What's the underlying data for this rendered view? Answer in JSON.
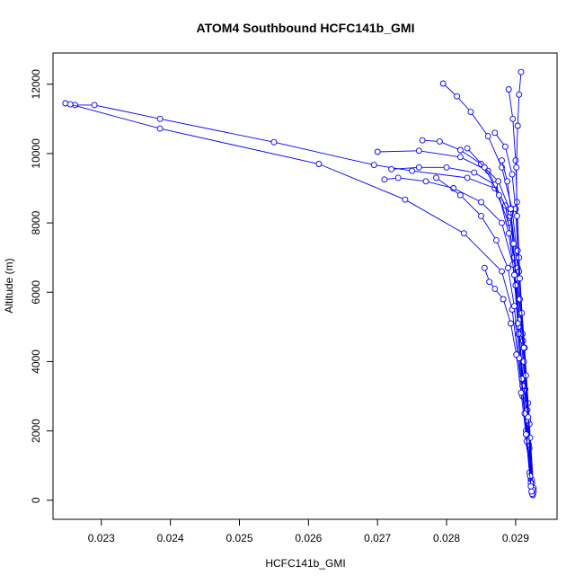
{
  "chart_data": {
    "type": "line",
    "title": "ATOM4 Southbound HCFC141b_GMI",
    "xlabel": "HCFC141b_GMI",
    "ylabel": "Altitude (m)",
    "xlim": [
      0.0223,
      0.0296
    ],
    "ylim": [
      -550,
      12900
    ],
    "x_ticks": [
      0.023,
      0.024,
      0.025,
      0.026,
      0.027,
      0.028,
      0.029
    ],
    "x_tick_labels": [
      "0.023",
      "0.024",
      "0.025",
      "0.026",
      "0.027",
      "0.028",
      "0.029"
    ],
    "y_ticks": [
      0,
      2000,
      4000,
      6000,
      8000,
      10000,
      12000
    ],
    "y_tick_labels": [
      "0",
      "2000",
      "4000",
      "6000",
      "8000",
      "10000",
      "12000"
    ],
    "marker": "open-circle",
    "color": "#0000ff",
    "grid": false,
    "legend": "none",
    "series": [
      {
        "x": [
          0.02248,
          0.02262,
          0.0229,
          0.02385,
          0.0255,
          0.02695,
          0.0275,
          0.0283,
          0.0287,
          0.0289,
          0.029,
          0.02905,
          0.0291,
          0.02915,
          0.0292,
          0.02925
        ],
        "y": [
          11450,
          11400,
          11400,
          11000,
          10330,
          9670,
          9500,
          9300,
          9000,
          8000,
          6500,
          5000,
          3500,
          2000,
          800,
          200
        ]
      },
      {
        "x": [
          0.02255,
          0.02385,
          0.02615,
          0.0274,
          0.02825,
          0.0288,
          0.02895,
          0.02903,
          0.0291,
          0.02918,
          0.02922,
          0.02925
        ],
        "y": [
          11420,
          10720,
          9700,
          8670,
          7700,
          6600,
          5500,
          4200,
          3000,
          1800,
          600,
          150
        ]
      },
      {
        "x": [
          0.027,
          0.0276,
          0.0282,
          0.0286,
          0.02885,
          0.02898,
          0.02906,
          0.02914,
          0.0292,
          0.02926
        ],
        "y": [
          10050,
          10080,
          9900,
          9500,
          8500,
          7000,
          5200,
          3200,
          1500,
          250
        ]
      },
      {
        "x": [
          0.0271,
          0.0273,
          0.0277,
          0.0281,
          0.0285,
          0.0288,
          0.02896,
          0.02904,
          0.02912,
          0.02919,
          0.02924
        ],
        "y": [
          9250,
          9300,
          9200,
          9000,
          8600,
          8000,
          6800,
          5000,
          3300,
          1600,
          300
        ]
      },
      {
        "x": [
          0.0272,
          0.0276,
          0.028,
          0.0284,
          0.0287,
          0.02892,
          0.02902,
          0.02911,
          0.02917,
          0.02923
        ],
        "y": [
          9550,
          9600,
          9600,
          9450,
          9100,
          8200,
          6400,
          4600,
          2600,
          400
        ]
      },
      {
        "x": [
          0.02765,
          0.0279,
          0.0282,
          0.0285,
          0.02875,
          0.02893,
          0.02903,
          0.0291,
          0.02918,
          0.02924
        ],
        "y": [
          10380,
          10350,
          10100,
          9700,
          9200,
          8300,
          6700,
          4800,
          2800,
          500
        ]
      },
      {
        "x": [
          0.02795,
          0.02815,
          0.02835,
          0.0286,
          0.0288,
          0.02895,
          0.02905,
          0.02913,
          0.0292,
          0.02926
        ],
        "y": [
          12020,
          11650,
          11200,
          10500,
          9600,
          8400,
          6600,
          4400,
          2200,
          350
        ]
      },
      {
        "x": [
          0.0287,
          0.02885,
          0.02895,
          0.029,
          0.02903,
          0.02906,
          0.02912,
          0.02918,
          0.02923
        ],
        "y": [
          10600,
          10200,
          9400,
          8400,
          7200,
          5800,
          4000,
          2300,
          600
        ]
      },
      {
        "x": [
          0.0289,
          0.02896,
          0.029,
          0.02902,
          0.02905,
          0.02909,
          0.02915,
          0.02921,
          0.02925
        ],
        "y": [
          11850,
          11000,
          9800,
          8600,
          7000,
          5400,
          3600,
          1800,
          300
        ]
      },
      {
        "x": [
          0.02908,
          0.02905,
          0.02903,
          0.02901,
          0.02902,
          0.02906,
          0.02912,
          0.02918,
          0.02924
        ],
        "y": [
          12350,
          11700,
          10800,
          9600,
          8200,
          6400,
          4400,
          2400,
          180
        ]
      },
      {
        "x": [
          0.0288,
          0.02888,
          0.02893,
          0.02897,
          0.029,
          0.02904,
          0.0291,
          0.02916,
          0.02922
        ],
        "y": [
          9800,
          9200,
          8400,
          7400,
          6200,
          4800,
          3300,
          1900,
          500
        ]
      },
      {
        "x": [
          0.0283,
          0.02855,
          0.02876,
          0.0289,
          0.02898,
          0.02903,
          0.02909,
          0.02916,
          0.02923
        ],
        "y": [
          10150,
          9600,
          8800,
          7700,
          6500,
          5100,
          3500,
          1700,
          250
        ]
      },
      {
        "x": [
          0.02785,
          0.0282,
          0.0285,
          0.02872,
          0.02889,
          0.02898,
          0.02905,
          0.02913,
          0.02921
        ],
        "y": [
          9300,
          8800,
          8200,
          7500,
          6700,
          5600,
          4100,
          2500,
          700
        ]
      },
      {
        "x": [
          0.02855,
          0.02862,
          0.0287,
          0.02882,
          0.02893,
          0.02901,
          0.02908,
          0.02915,
          0.02922
        ],
        "y": [
          6700,
          6300,
          6100,
          5800,
          5100,
          4200,
          3100,
          1900,
          400
        ]
      }
    ]
  }
}
